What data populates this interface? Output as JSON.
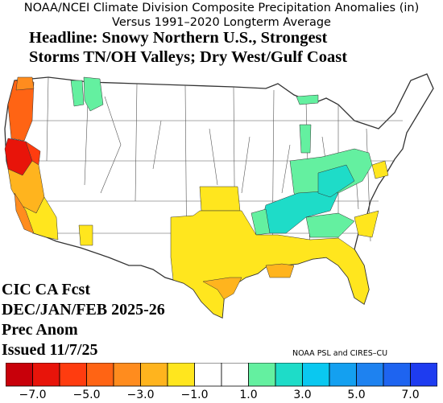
{
  "title": {
    "line1": "NOAA/NCEI Climate Division Composite Precipitation Anomalies (in)",
    "line2": "Versus 1991–2020 Longterm Average"
  },
  "headline": {
    "line1": "Headline: Snowy Northern U.S., Strongest",
    "line2": "Storms TN/OH Valleys; Dry West/Gulf Coast"
  },
  "forecast_info": {
    "line1": "CIC CA Fcst",
    "line2": "DEC/JAN/FEB 2025-26",
    "line3": "Prec Anom",
    "line4": "Issued 11/7/25"
  },
  "credit": "NOAA PSL and CIRES–CU",
  "colorbar": {
    "bins": [
      {
        "from": -8,
        "to": -7,
        "color": "#c8000a"
      },
      {
        "from": -7,
        "to": -6,
        "color": "#e8140a"
      },
      {
        "from": -6,
        "to": -5,
        "color": "#ff3c0f"
      },
      {
        "from": -5,
        "to": -4,
        "color": "#ff6414"
      },
      {
        "from": -4,
        "to": -3,
        "color": "#ff8c1e"
      },
      {
        "from": -3,
        "to": -2,
        "color": "#ffb41e"
      },
      {
        "from": -2,
        "to": -1,
        "color": "#ffe61e"
      },
      {
        "from": -1,
        "to": 0,
        "color": "#ffffff"
      },
      {
        "from": 0,
        "to": 1,
        "color": "#ffffff"
      },
      {
        "from": 1,
        "to": 2,
        "color": "#64f0a0"
      },
      {
        "from": 2,
        "to": 3,
        "color": "#1edcc8"
      },
      {
        "from": 3,
        "to": 4,
        "color": "#0ac8f0"
      },
      {
        "from": 4,
        "to": 5,
        "color": "#14a0f0"
      },
      {
        "from": 5,
        "to": 6,
        "color": "#1e82f0"
      },
      {
        "from": 6,
        "to": 7,
        "color": "#1e64f0"
      },
      {
        "from": 7,
        "to": 8,
        "color": "#1e3cf0"
      }
    ],
    "tick_labels": [
      "−7.0",
      "−5.0",
      "−3.0",
      "−1.0",
      "1.0",
      "3.0",
      "5.0",
      "7.0"
    ]
  },
  "map_regions": [
    {
      "region": "northern-california-coast",
      "category": "-7 to -6",
      "color": "#e8140a"
    },
    {
      "region": "oregon-coast",
      "category": "-5 to -4",
      "color": "#ff6414"
    },
    {
      "region": "central-california",
      "category": "-3 to -2",
      "color": "#ffb41e"
    },
    {
      "region": "southern-california",
      "category": "-2 to -1",
      "color": "#ffe61e"
    },
    {
      "region": "texas-and-gulf-coast",
      "category": "-2 to -1",
      "color": "#ffe61e"
    },
    {
      "region": "south-texas-louisiana",
      "category": "-3 to -2",
      "color": "#ffb41e"
    },
    {
      "region": "northern-idaho-montana",
      "category": "1 to 2",
      "color": "#64f0a0"
    },
    {
      "region": "michigan-great-lakes",
      "category": "1 to 2",
      "color": "#64f0a0"
    },
    {
      "region": "ohio-valley",
      "category": "1 to 2",
      "color": "#64f0a0"
    },
    {
      "region": "tennessee-valley",
      "category": "2 to 3",
      "color": "#1edcc8"
    }
  ]
}
